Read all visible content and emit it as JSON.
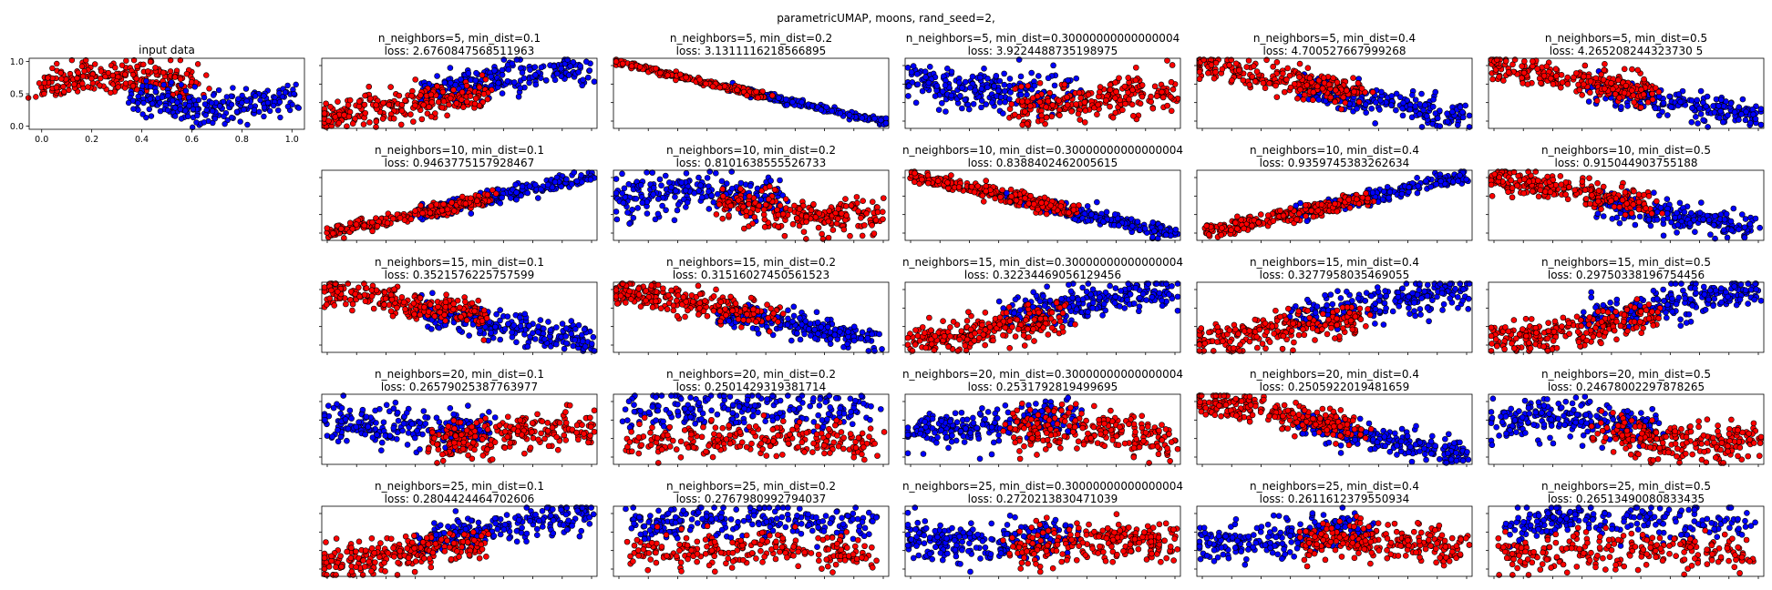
{
  "figure": {
    "suptitle": "parametricUMAP, moons, rand_seed=2,",
    "colors": {
      "class0": "#0000ff",
      "class1": "#ff0000",
      "edge": "#000000"
    }
  },
  "chart_data": [
    {
      "type": "scatter",
      "title": "input data",
      "xlabel": "",
      "ylabel": "",
      "xlim": [
        -0.05,
        1.05
      ],
      "ylim": [
        -0.05,
        1.05
      ],
      "xticks": [
        "0.0",
        "0.2",
        "0.4",
        "0.6",
        "0.8",
        "1.0"
      ],
      "yticks": [
        "0.0",
        "0.5",
        "1.0"
      ],
      "series": [
        {
          "shape": "arc_up",
          "color": "class1",
          "x_range": [
            0.0,
            0.62
          ],
          "y_center": 0.68,
          "spread": 0.12,
          "count": 260
        },
        {
          "shape": "arc_down",
          "color": "class0",
          "x_range": [
            0.38,
            1.0
          ],
          "y_center": 0.38,
          "spread": 0.12,
          "count": 260
        }
      ]
    }
  ],
  "panels": [
    {
      "n_neighbors": 5,
      "min_dist": "0.1",
      "title": "n_neighbors=5, min_dist=0.1",
      "loss": "loss: 2.6760847568511963"
    },
    {
      "n_neighbors": 5,
      "min_dist": "0.2",
      "title": "n_neighbors=5, min_dist=0.2",
      "loss": "loss: 3.1311116218566895"
    },
    {
      "n_neighbors": 5,
      "min_dist": "0.30000000000000004",
      "title": "n_neighbors=5, min_dist=0.30000000000000004",
      "loss": "loss: 3.9224488735198975"
    },
    {
      "n_neighbors": 5,
      "min_dist": "0.4",
      "title": "n_neighbors=5, min_dist=0.4",
      "loss": "loss: 4.700527667999268"
    },
    {
      "n_neighbors": 5,
      "min_dist": "0.5",
      "title": "n_neighbors=5, min_dist=0.5",
      "loss": "loss: 4.265208244323730 5"
    },
    {
      "n_neighbors": 10,
      "min_dist": "0.1",
      "title": "n_neighbors=10, min_dist=0.1",
      "loss": "loss: 0.9463775157928467"
    },
    {
      "n_neighbors": 10,
      "min_dist": "0.2",
      "title": "n_neighbors=10, min_dist=0.2",
      "loss": "loss: 0.8101638555526733"
    },
    {
      "n_neighbors": 10,
      "min_dist": "0.30000000000000004",
      "title": "n_neighbors=10, min_dist=0.30000000000000004",
      "loss": "loss: 0.8388402462005615"
    },
    {
      "n_neighbors": 10,
      "min_dist": "0.4",
      "title": "n_neighbors=10, min_dist=0.4",
      "loss": "loss: 0.9359745383262634"
    },
    {
      "n_neighbors": 10,
      "min_dist": "0.5",
      "title": "n_neighbors=10, min_dist=0.5",
      "loss": "loss: 0.915044903755188"
    },
    {
      "n_neighbors": 15,
      "min_dist": "0.1",
      "title": "n_neighbors=15, min_dist=0.1",
      "loss": "loss: 0.3521576225757599"
    },
    {
      "n_neighbors": 15,
      "min_dist": "0.2",
      "title": "n_neighbors=15, min_dist=0.2",
      "loss": "loss: 0.31516027450561523"
    },
    {
      "n_neighbors": 15,
      "min_dist": "0.30000000000000004",
      "title": "n_neighbors=15, min_dist=0.30000000000000004",
      "loss": "loss: 0.32234469056129456"
    },
    {
      "n_neighbors": 15,
      "min_dist": "0.4",
      "title": "n_neighbors=15, min_dist=0.4",
      "loss": "loss: 0.3277958035469055"
    },
    {
      "n_neighbors": 15,
      "min_dist": "0.5",
      "title": "n_neighbors=15, min_dist=0.5",
      "loss": "loss: 0.29750338196754456"
    },
    {
      "n_neighbors": 20,
      "min_dist": "0.1",
      "title": "n_neighbors=20, min_dist=0.1",
      "loss": "loss: 0.26579025387763977"
    },
    {
      "n_neighbors": 20,
      "min_dist": "0.2",
      "title": "n_neighbors=20, min_dist=0.2",
      "loss": "loss: 0.2501429319381714"
    },
    {
      "n_neighbors": 20,
      "min_dist": "0.30000000000000004",
      "title": "n_neighbors=20, min_dist=0.30000000000000004",
      "loss": "loss: 0.2531792819499695"
    },
    {
      "n_neighbors": 20,
      "min_dist": "0.4",
      "title": "n_neighbors=20, min_dist=0.4",
      "loss": "loss: 0.2505922019481659"
    },
    {
      "n_neighbors": 20,
      "min_dist": "0.5",
      "title": "n_neighbors=20, min_dist=0.5",
      "loss": "loss: 0.24678002297878265"
    },
    {
      "n_neighbors": 25,
      "min_dist": "0.1",
      "title": "n_neighbors=25, min_dist=0.1",
      "loss": "loss: 0.2804424464702606"
    },
    {
      "n_neighbors": 25,
      "min_dist": "0.2",
      "title": "n_neighbors=25, min_dist=0.2",
      "loss": "loss: 0.2767980992794037"
    },
    {
      "n_neighbors": 25,
      "min_dist": "0.30000000000000004",
      "title": "n_neighbors=25, min_dist=0.30000000000000004",
      "loss": "loss: 0.2720213830471039"
    },
    {
      "n_neighbors": 25,
      "min_dist": "0.4",
      "title": "n_neighbors=25, min_dist=0.4",
      "loss": "loss: 0.2611612379550934"
    },
    {
      "n_neighbors": 25,
      "min_dist": "0.5",
      "title": "n_neighbors=25, min_dist=0.5",
      "loss": "loss: 0.26513490080833435"
    }
  ]
}
